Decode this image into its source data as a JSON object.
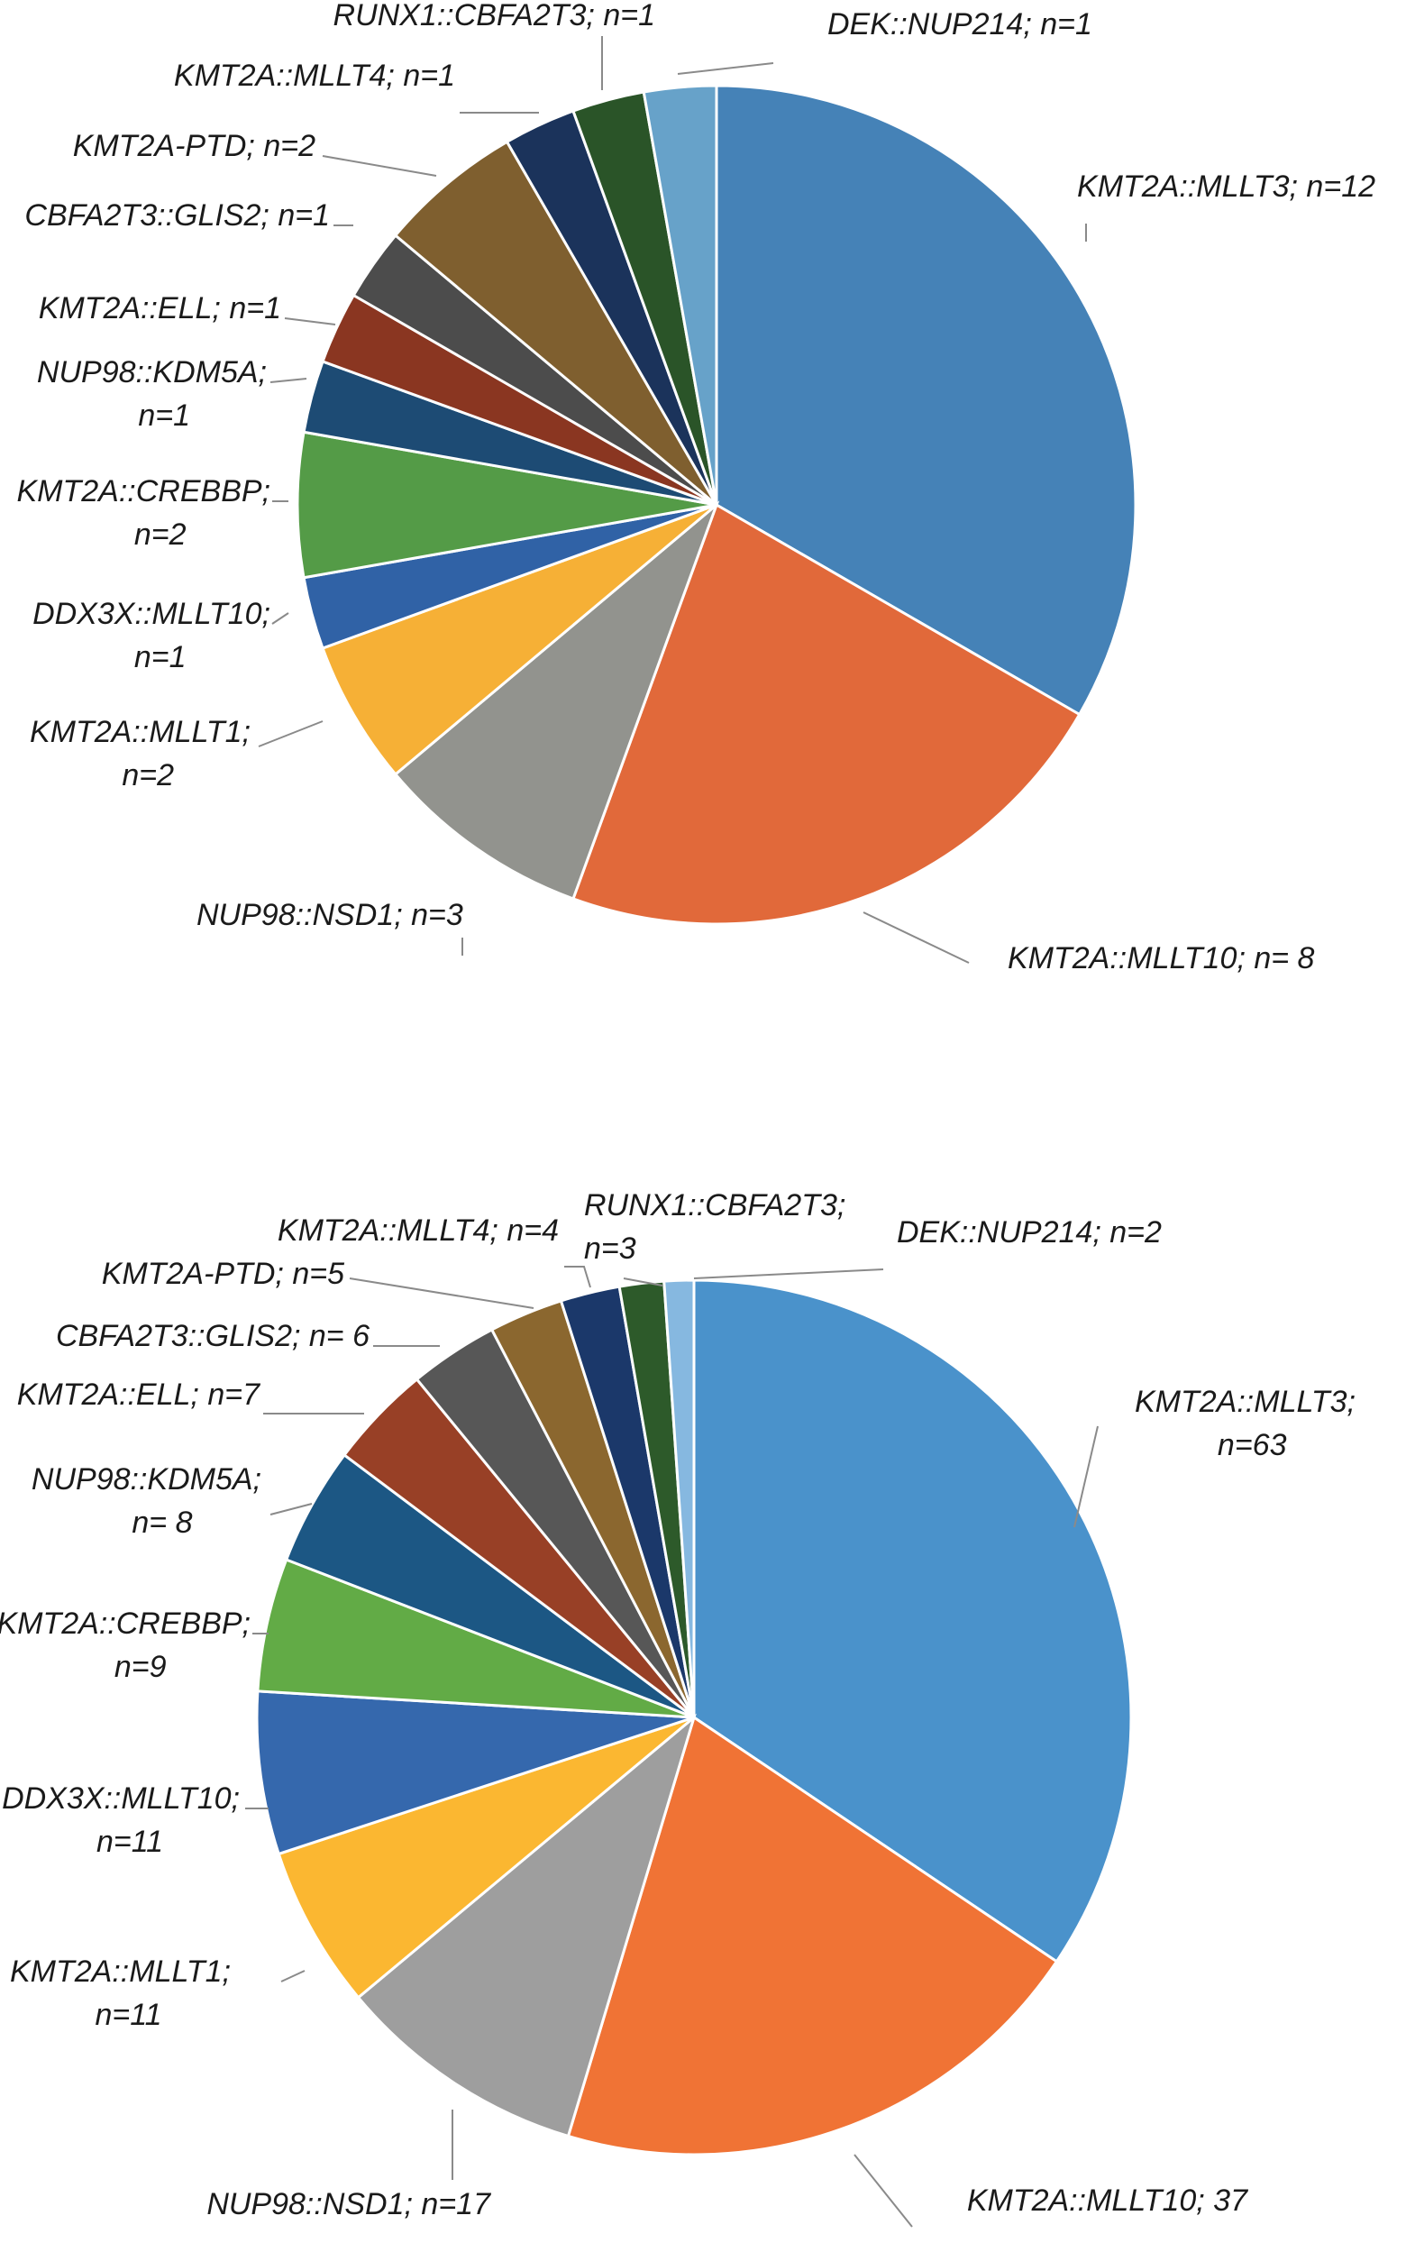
{
  "chart_data": [
    {
      "type": "pie",
      "title": "",
      "slices": [
        {
          "name": "KMT2A::MLLT3",
          "value": 12,
          "label": "KMT2A::MLLT3; n=12",
          "color": "#4582b7"
        },
        {
          "name": "KMT2A::MLLT10",
          "value": 8,
          "label": "KMT2A::MLLT10; n= 8",
          "color": "#e1693a"
        },
        {
          "name": "NUP98::NSD1",
          "value": 3,
          "label": "NUP98::NSD1; n=3",
          "color": "#92938e"
        },
        {
          "name": "KMT2A::MLLT1",
          "value": 2,
          "label": "KMT2A::MLLT1;\nn=2",
          "color": "#f6b036"
        },
        {
          "name": "DDX3X::MLLT10",
          "value": 1,
          "label": "DDX3X::MLLT10;\nn=1",
          "color": "#3062a6"
        },
        {
          "name": "KMT2A::CREBBP",
          "value": 2,
          "label": "KMT2A::CREBBP;\nn=2",
          "color": "#549b47"
        },
        {
          "name": "NUP98::KDM5A",
          "value": 1,
          "label": "NUP98::KDM5A;\nn=1",
          "color": "#1d4b74"
        },
        {
          "name": "KMT2A::ELL",
          "value": 1,
          "label": "KMT2A::ELL; n=1",
          "color": "#8a3621"
        },
        {
          "name": "CBFA2T3::GLIS2",
          "value": 1,
          "label": "CBFA2T3::GLIS2; n=1",
          "color": "#4c4c4c"
        },
        {
          "name": "KMT2A-PTD",
          "value": 2,
          "label": "KMT2A-PTD; n=2",
          "color": "#7f5f2f"
        },
        {
          "name": "KMT2A::MLLT4",
          "value": 1,
          "label": "KMT2A::MLLT4; n=1",
          "color": "#1b335b"
        },
        {
          "name": "RUNX1::CBFA2T3",
          "value": 1,
          "label": "RUNX1::CBFA2T3; n=1",
          "color": "#2a5428"
        },
        {
          "name": "DEK::NUP214",
          "value": 1,
          "label": "DEK::NUP214; n=1",
          "color": "#67a2c9"
        }
      ]
    },
    {
      "type": "pie",
      "title": "",
      "slices": [
        {
          "name": "KMT2A::MLLT3",
          "value": 63,
          "label": "KMT2A::MLLT3;\nn=63",
          "color": "#4a92cb"
        },
        {
          "name": "KMT2A::MLLT10",
          "value": 37,
          "label": "KMT2A::MLLT10; 37",
          "color": "#f07335"
        },
        {
          "name": "NUP98::NSD1",
          "value": 17,
          "label": "NUP98::NSD1; n=17",
          "color": "#9e9e9e"
        },
        {
          "name": "KMT2A::MLLT1",
          "value": 11,
          "label": "KMT2A::MLLT1;\nn=11",
          "color": "#fbb731"
        },
        {
          "name": "DDX3X::MLLT10",
          "value": 11,
          "label": "DDX3X::MLLT10;\nn=11",
          "color": "#3568ad"
        },
        {
          "name": "KMT2A::CREBBP",
          "value": 9,
          "label": "KMT2A::CREBBP;\nn=9",
          "color": "#62ab46"
        },
        {
          "name": "NUP98::KDM5A",
          "value": 8,
          "label": "NUP98::KDM5A;\nn= 8",
          "color": "#1c5784"
        },
        {
          "name": "KMT2A::ELL",
          "value": 7,
          "label": "KMT2A::ELL; n=7",
          "color": "#984026"
        },
        {
          "name": "CBFA2T3::GLIS2",
          "value": 6,
          "label": "CBFA2T3::GLIS2; n= 6",
          "color": "#575757"
        },
        {
          "name": "KMT2A-PTD",
          "value": 5,
          "label": "KMT2A-PTD; n=5",
          "color": "#8b672f"
        },
        {
          "name": "KMT2A::MLLT4",
          "value": 4,
          "label": "KMT2A::MLLT4; n=4",
          "color": "#1b386a"
        },
        {
          "name": "RUNX1::CBFA2T3",
          "value": 3,
          "label": "RUNX1::CBFA2T3;\nn=3",
          "color": "#2d5a2a"
        },
        {
          "name": "DEK::NUP214",
          "value": 2,
          "label": "DEK::NUP214; n=2",
          "color": "#86b8e0"
        }
      ]
    }
  ]
}
